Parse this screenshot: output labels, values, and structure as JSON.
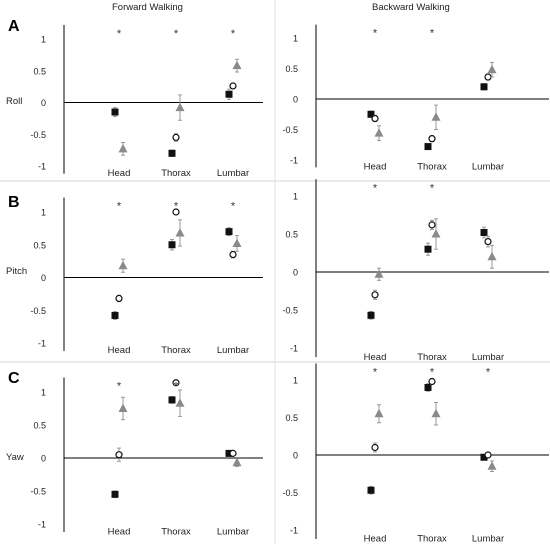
{
  "figure": {
    "column_titles": [
      "Forward Walking",
      "Backward Walking"
    ],
    "row_letters": [
      "A",
      "B",
      "C"
    ],
    "row_labels": [
      "Roll",
      "Pitch",
      "Yaw"
    ],
    "colors": {
      "square": "#111111",
      "circle": "#111111",
      "triangle": "#8a8a8a",
      "axis": "#000000",
      "errorbar": "#999999"
    }
  },
  "chart_data": [
    {
      "type": "scatter",
      "row": "A",
      "column": "Forward Walking",
      "ylabel": "Roll",
      "categories": [
        "Head",
        "Thorax",
        "Lumbar"
      ],
      "ylim": [
        -1,
        1
      ],
      "yticks": [
        -1,
        -0.5,
        0,
        0.5,
        1
      ],
      "series": [
        {
          "marker": "square",
          "values": [
            -0.15,
            -0.8,
            0.13
          ],
          "errors": [
            0.07,
            0.05,
            0.08
          ]
        },
        {
          "marker": "circle",
          "values": [
            null,
            -0.55,
            0.26
          ],
          "errors": [
            0,
            0.06,
            0.04
          ]
        },
        {
          "marker": "triangle",
          "values": [
            -0.73,
            -0.08,
            0.58
          ],
          "errors": [
            0.1,
            0.2,
            0.1
          ]
        }
      ],
      "significance": [
        "*",
        "*",
        "*"
      ]
    },
    {
      "type": "scatter",
      "row": "A",
      "column": "Backward Walking",
      "categories": [
        "Head",
        "Thorax",
        "Lumbar"
      ],
      "ylim": [
        -1,
        1
      ],
      "yticks": [
        -1,
        -0.5,
        0,
        0.5,
        1
      ],
      "series": [
        {
          "marker": "square",
          "values": [
            -0.25,
            -0.78,
            0.2
          ],
          "errors": [
            0.05,
            0.04,
            0.05
          ]
        },
        {
          "marker": "circle",
          "values": [
            -0.32,
            -0.65,
            0.36
          ],
          "errors": [
            0.05,
            0.05,
            0.05
          ]
        },
        {
          "marker": "triangle",
          "values": [
            -0.56,
            -0.3,
            0.48
          ],
          "errors": [
            0.12,
            0.2,
            0.12
          ]
        }
      ],
      "significance": [
        "*",
        "*",
        ""
      ]
    },
    {
      "type": "scatter",
      "row": "B",
      "column": "Forward Walking",
      "ylabel": "Pitch",
      "categories": [
        "Head",
        "Thorax",
        "Lumbar"
      ],
      "ylim": [
        -1,
        1
      ],
      "yticks": [
        -1,
        -0.5,
        0,
        0.5,
        1
      ],
      "series": [
        {
          "marker": "square",
          "values": [
            -0.58,
            0.5,
            0.7
          ],
          "errors": [
            0.06,
            0.08,
            0.06
          ]
        },
        {
          "marker": "circle",
          "values": [
            -0.32,
            1.0,
            0.35
          ],
          "errors": [
            0.05,
            0.04,
            0.05
          ]
        },
        {
          "marker": "triangle",
          "values": [
            0.18,
            0.68,
            0.52
          ],
          "errors": [
            0.1,
            0.2,
            0.12
          ]
        }
      ],
      "significance": [
        "*",
        "*",
        "*"
      ]
    },
    {
      "type": "scatter",
      "row": "B",
      "column": "Backward Walking",
      "categories": [
        "Head",
        "Thorax",
        "Lumbar"
      ],
      "ylim": [
        -1,
        1
      ],
      "yticks": [
        -1,
        -0.5,
        0,
        0.5,
        1
      ],
      "series": [
        {
          "marker": "square",
          "values": [
            -0.57,
            0.3,
            0.52
          ],
          "errors": [
            0.05,
            0.08,
            0.07
          ]
        },
        {
          "marker": "circle",
          "values": [
            -0.3,
            0.62,
            0.4
          ],
          "errors": [
            0.06,
            0.06,
            0.07
          ]
        },
        {
          "marker": "triangle",
          "values": [
            -0.03,
            0.5,
            0.2
          ],
          "errors": [
            0.08,
            0.2,
            0.15
          ]
        }
      ],
      "significance": [
        "*",
        "*",
        ""
      ]
    },
    {
      "type": "scatter",
      "row": "C",
      "column": "Forward Walking",
      "ylabel": "Yaw",
      "categories": [
        "Head",
        "Thorax",
        "Lumbar"
      ],
      "ylim": [
        -1,
        1
      ],
      "yticks": [
        -1,
        -0.5,
        0,
        0.5,
        1
      ],
      "series": [
        {
          "marker": "square",
          "values": [
            -0.55,
            0.88,
            0.07
          ],
          "errors": [
            0.05,
            0.05,
            0.03
          ]
        },
        {
          "marker": "circle",
          "values": [
            0.05,
            1.14,
            0.07
          ],
          "errors": [
            0.1,
            0.04,
            0.03
          ]
        },
        {
          "marker": "triangle",
          "values": [
            0.75,
            0.83,
            -0.07
          ],
          "errors": [
            0.17,
            0.2,
            0.06
          ]
        }
      ],
      "significance": [
        "*",
        "*",
        ""
      ]
    },
    {
      "type": "scatter",
      "row": "C",
      "column": "Backward Walking",
      "categories": [
        "Head",
        "Thorax",
        "Lumbar"
      ],
      "ylim": [
        -1,
        1
      ],
      "yticks": [
        -1,
        -0.5,
        0,
        0.5,
        1
      ],
      "series": [
        {
          "marker": "square",
          "values": [
            -0.47,
            0.9,
            -0.03
          ],
          "errors": [
            0.05,
            0.05,
            0.03
          ]
        },
        {
          "marker": "circle",
          "values": [
            0.1,
            0.98,
            0.0
          ],
          "errors": [
            0.06,
            0.04,
            0.03
          ]
        },
        {
          "marker": "triangle",
          "values": [
            0.55,
            0.55,
            -0.15
          ],
          "errors": [
            0.12,
            0.15,
            0.07
          ]
        }
      ],
      "significance": [
        "*",
        "*",
        "*"
      ]
    }
  ]
}
